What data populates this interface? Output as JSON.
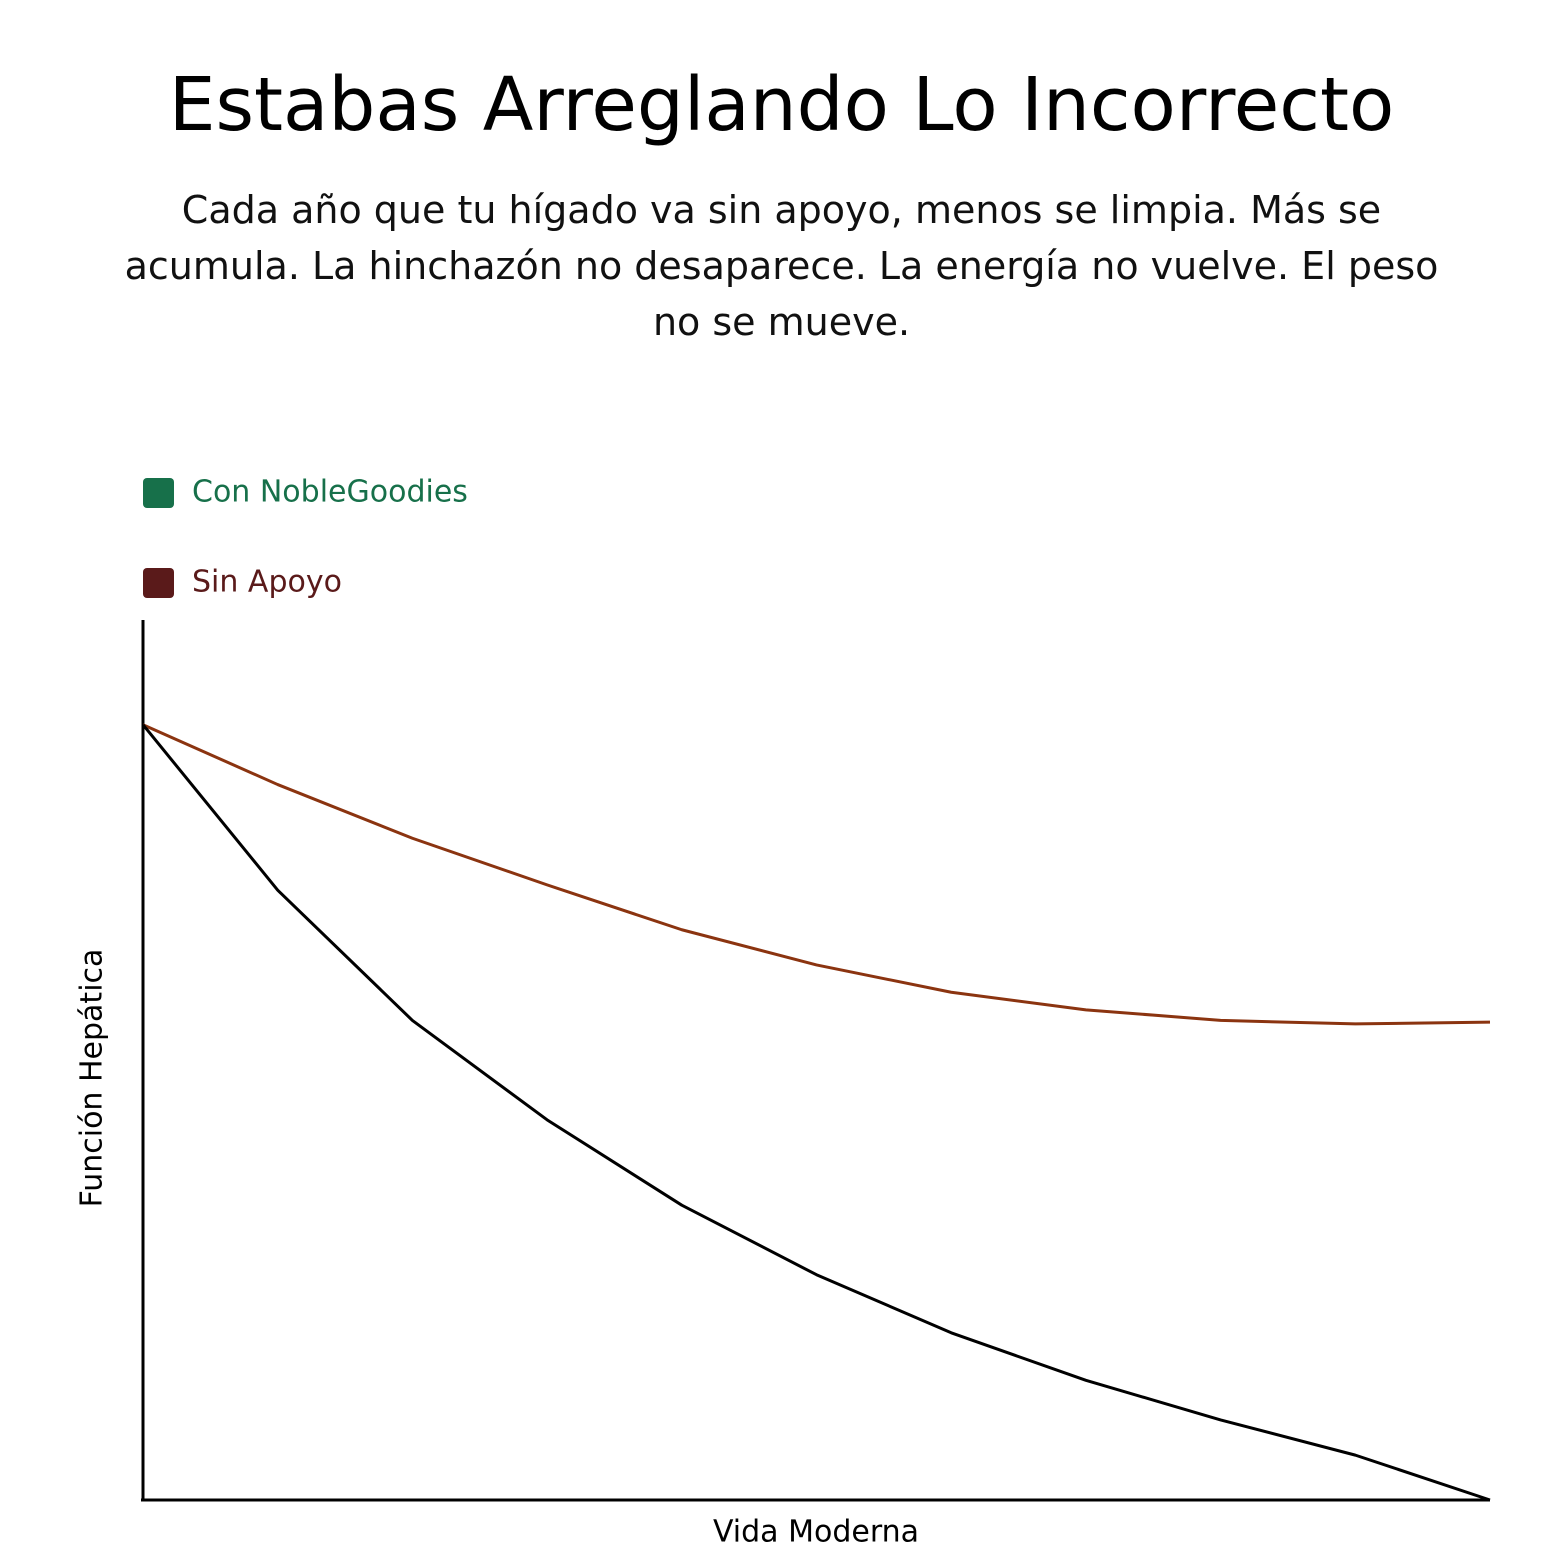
{
  "chart_data": {
    "type": "line",
    "title": "Estabas Arreglando Lo Incorrecto",
    "subtitle": "Cada año que tu hígado va sin apoyo, menos se limpia. Más se acumula. La hinchazón no desaparece. La energía no vuelve. El peso no se mueve.",
    "x_label": "Vida Moderna",
    "y_label": "Función Hepática",
    "x": [
      0,
      10,
      20,
      30,
      40,
      50,
      60,
      70,
      80,
      90,
      100
    ],
    "xlim": [
      0,
      100
    ],
    "ylim": [
      0,
      100
    ],
    "legend_position": "top-left",
    "series": [
      {
        "name": "Con NobleGoodies",
        "color": "#8b3410",
        "legend_color": "#17704a",
        "values": [
          88.1,
          81.3,
          75.2,
          69.9,
          64.8,
          60.8,
          57.7,
          55.7,
          54.5,
          54.1,
          54.3
        ]
      },
      {
        "name": "Sin Apoyo",
        "color": "#000000",
        "legend_color": "#5a1a1a",
        "values": [
          88.1,
          69.3,
          54.5,
          43.2,
          33.5,
          25.6,
          19.0,
          13.6,
          9.1,
          5.1,
          0
        ]
      }
    ]
  }
}
